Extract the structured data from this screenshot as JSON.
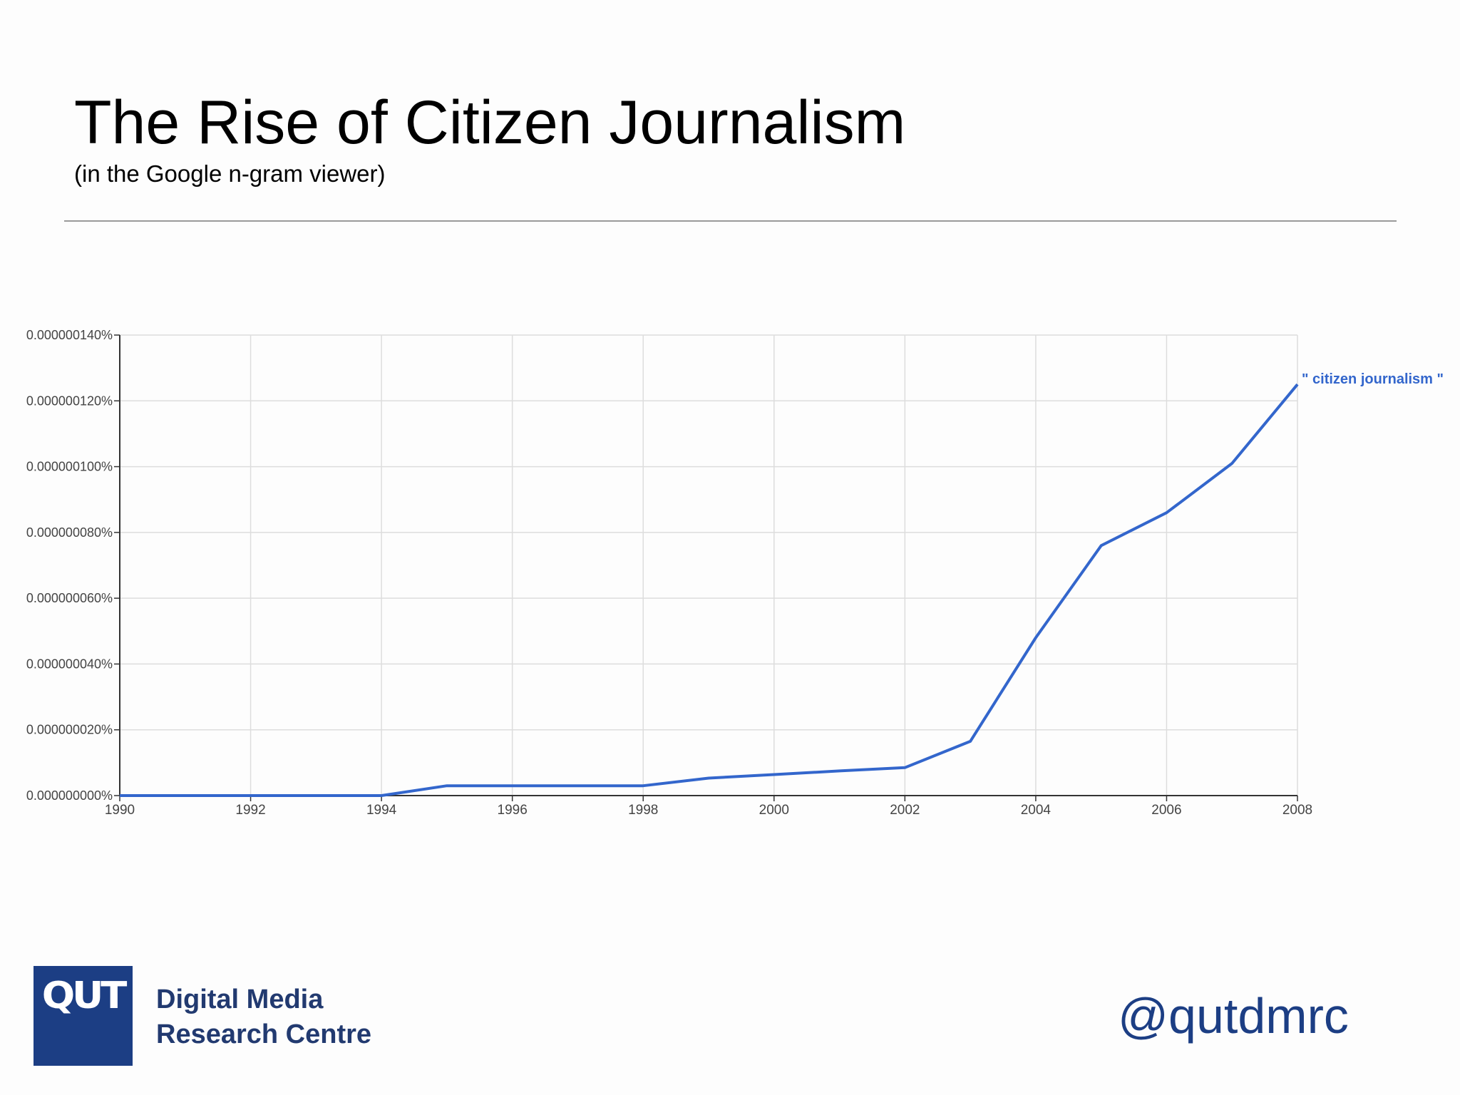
{
  "slide": {
    "title": "The Rise of Citizen Journalism",
    "subtitle": "(in the Google n-gram viewer)"
  },
  "chart_data": {
    "type": "line",
    "x": [
      1990,
      1991,
      1992,
      1993,
      1994,
      1995,
      1996,
      1997,
      1998,
      1999,
      2000,
      2001,
      2002,
      2003,
      2004,
      2005,
      2006,
      2007,
      2008
    ],
    "series": [
      {
        "name": "\" citizen journalism \"",
        "color": "#3366cc",
        "values": [
          0.0,
          0.0,
          0.0,
          0.0,
          0.0,
          3e-09,
          3e-09,
          3e-09,
          3e-09,
          5.3e-09,
          6.4e-09,
          7.5e-09,
          8.5e-09,
          1.65e-08,
          4.8e-08,
          7.6e-08,
          8.6e-08,
          1.01e-07,
          1.25e-07
        ]
      }
    ],
    "xticks": [
      "1990",
      "1992",
      "1994",
      "1996",
      "1998",
      "2000",
      "2002",
      "2004",
      "2006",
      "2008"
    ],
    "yticks": [
      "0.000000000%",
      "0.000000020%",
      "0.000000040%",
      "0.000000060%",
      "0.000000080%",
      "0.000000100%",
      "0.000000120%",
      "0.000000140%"
    ],
    "xlim": [
      1990,
      2008
    ],
    "ylim": [
      0,
      1.4e-07
    ],
    "grid": true,
    "legend": "end-of-line label"
  },
  "logo": {
    "mark": "QUT",
    "colors": {
      "box": "#1c3e84",
      "text": "#223a70"
    }
  },
  "footer": {
    "centre_line1": "Digital Media",
    "centre_line2": "Research Centre",
    "handle": "@qutdmrc"
  }
}
